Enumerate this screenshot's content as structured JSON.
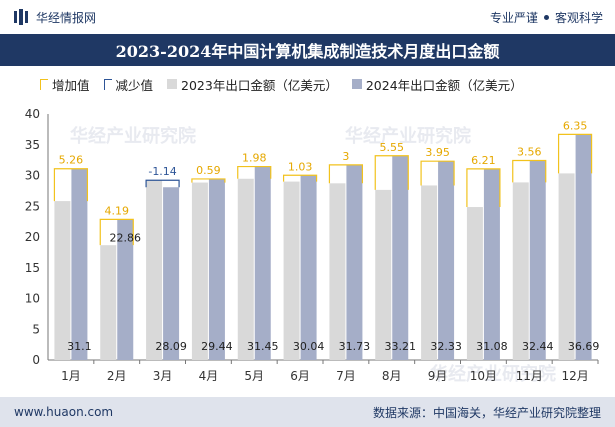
{
  "header": {
    "brand": "华经情报网",
    "tags": [
      "专业严谨",
      "客观科学"
    ]
  },
  "title": "2023-2024年中国计算机集成制造技术月度出口金额",
  "legend": {
    "increase": "增加值",
    "decrease": "减少值",
    "series2023": "2023年出口金额（亿美元）",
    "series2024": "2024年出口金额（亿美元）"
  },
  "watermark": "华经产业研究院",
  "watermark2": "www.huaon.com",
  "footer": {
    "website": "www.huaon.com",
    "source": "数据来源：中国海关，华经产业研究院整理"
  },
  "colors": {
    "series2023": "#d9d9d9",
    "series2024": "#a5aec8",
    "increase": "#f2c21d",
    "decrease": "#2e5597",
    "title_bar": "#1f3864"
  },
  "chart_data": {
    "type": "bar",
    "categories": [
      "1月",
      "2月",
      "3月",
      "4月",
      "5月",
      "6月",
      "7月",
      "8月",
      "9月",
      "10月",
      "11月",
      "12月"
    ],
    "series": [
      {
        "name": "2023年出口金额（亿美元）",
        "values": [
          25.84,
          18.67,
          29.23,
          28.85,
          29.47,
          29.01,
          28.73,
          27.66,
          28.38,
          24.87,
          28.88,
          30.34
        ]
      },
      {
        "name": "2024年出口金额（亿美元）",
        "values": [
          31.1,
          22.86,
          28.09,
          29.44,
          31.45,
          30.04,
          31.73,
          33.21,
          32.33,
          31.08,
          32.44,
          36.69
        ]
      }
    ],
    "labels_2024": [
      "31.1",
      "22.86",
      "28.09",
      "29.44",
      "31.45",
      "30.04",
      "31.73",
      "33.21",
      "32.33",
      "31.08",
      "32.44",
      "36.69"
    ],
    "change_labels": [
      "5.26",
      "4.19",
      "-1.14",
      "0.59",
      "1.98",
      "1.03",
      "3",
      "5.55",
      "3.95",
      "6.21",
      "3.56",
      "6.35"
    ],
    "ylim": [
      0,
      40
    ],
    "yticks": [
      "0",
      "5",
      "10",
      "15",
      "20",
      "25",
      "30",
      "35",
      "40"
    ],
    "grid": false
  }
}
